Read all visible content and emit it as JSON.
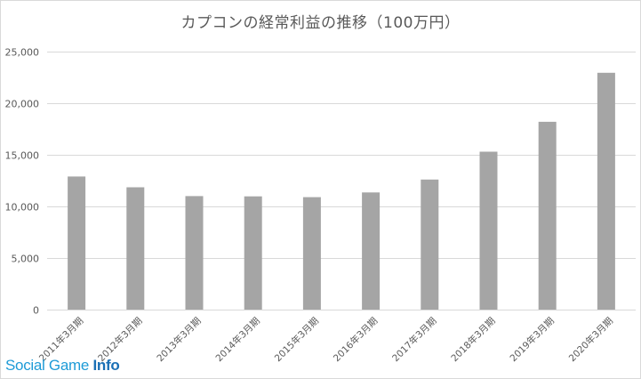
{
  "chart_data": {
    "type": "bar",
    "title": "カプコンの経常利益の推移（100万円）",
    "categories": [
      "2011年3月期",
      "2012年3月期",
      "2013年3月期",
      "2014年3月期",
      "2015年3月期",
      "2016年3月期",
      "2017年3月期",
      "2018年3月期",
      "2019年3月期",
      "2020年3月期"
    ],
    "values": [
      12900,
      11850,
      11000,
      10970,
      10900,
      11350,
      12600,
      15300,
      18200,
      22950
    ],
    "ylim": [
      0,
      25000
    ],
    "yticks": [
      0,
      5000,
      10000,
      15000,
      20000,
      25000
    ],
    "ytick_labels": [
      "0",
      "5,000",
      "10,000",
      "15,000",
      "20,000",
      "25,000"
    ],
    "xlabel": "",
    "ylabel": "",
    "grid": true,
    "legend": "none",
    "bar_color": "#a5a5a5",
    "grid_color": "#d9d9d9",
    "text_color": "#595959"
  },
  "watermark": {
    "part1": "Social Game ",
    "part2": "Info"
  }
}
